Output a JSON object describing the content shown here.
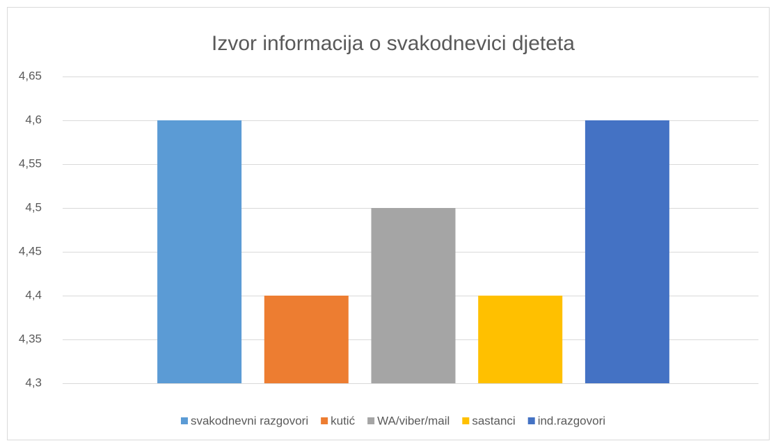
{
  "chart_data": {
    "type": "bar",
    "title": "Izvor informacija o svakodnevici djeteta",
    "series": [
      {
        "name": "svakodnevni razgovori",
        "color": "#5b9bd5",
        "values": [
          4.6
        ]
      },
      {
        "name": "kutić",
        "color": "#ed7d31",
        "values": [
          4.4
        ]
      },
      {
        "name": "WA/viber/mail",
        "color": "#a5a5a5",
        "values": [
          4.5
        ]
      },
      {
        "name": "sastanci",
        "color": "#ffc000",
        "values": [
          4.4
        ]
      },
      {
        "name": "ind.razgovori",
        "color": "#4472c4",
        "values": [
          4.6
        ]
      }
    ],
    "ylim": [
      4.3,
      4.65
    ],
    "yticks": [
      {
        "value": 4.3,
        "label": "4,3"
      },
      {
        "value": 4.35,
        "label": "4,35"
      },
      {
        "value": 4.4,
        "label": "4,4"
      },
      {
        "value": 4.45,
        "label": "4,45"
      },
      {
        "value": 4.5,
        "label": "4,5"
      },
      {
        "value": 4.55,
        "label": "4,55"
      },
      {
        "value": 4.6,
        "label": "4,6"
      },
      {
        "value": 4.65,
        "label": "4,65"
      }
    ],
    "grid": true,
    "legend": "bottom"
  }
}
